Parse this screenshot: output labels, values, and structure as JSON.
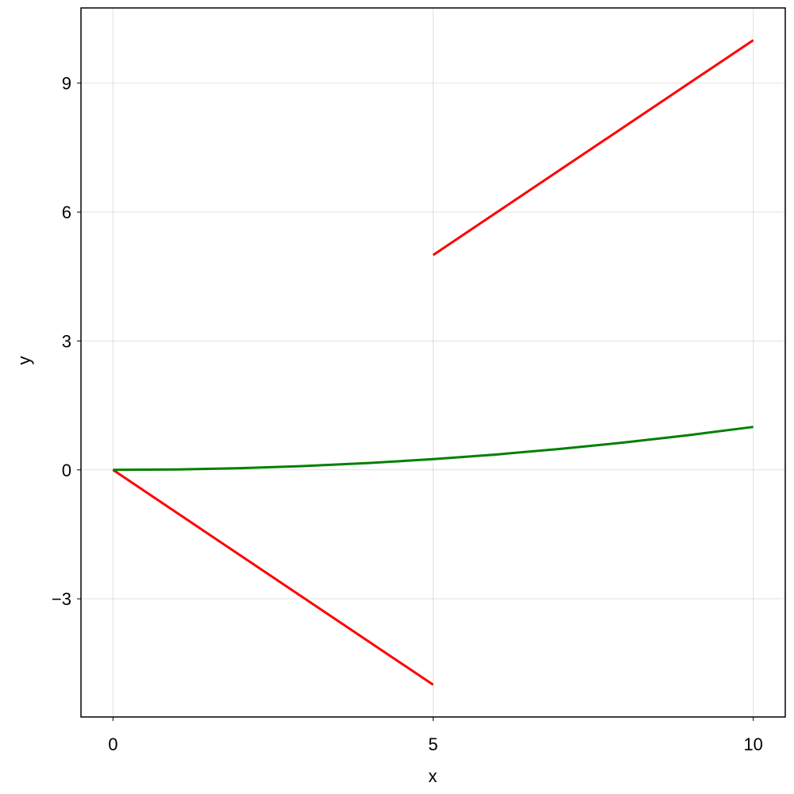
{
  "chart_data": {
    "type": "line",
    "xlabel": "x",
    "ylabel": "y",
    "series": [
      {
        "color": "#ff0000",
        "x": [
          0,
          5,
          5,
          5,
          10
        ],
        "values": [
          0,
          -5,
          null,
          5,
          10
        ]
      },
      {
        "color": "#008000",
        "x": [
          0,
          1,
          2,
          3,
          4,
          5,
          6,
          7,
          8,
          9,
          10
        ],
        "values": [
          0,
          0.01,
          0.04,
          0.09,
          0.16,
          0.25,
          0.36,
          0.49,
          0.64,
          0.81,
          1
        ]
      }
    ],
    "xlim": [
      -0.5,
      10.5
    ],
    "ylim": [
      -5.75,
      10.75
    ],
    "xticks": [
      0,
      5,
      10
    ],
    "yticks": [
      {
        "value": -3,
        "label": "−3"
      },
      0,
      3,
      6,
      9
    ],
    "grid": true
  }
}
